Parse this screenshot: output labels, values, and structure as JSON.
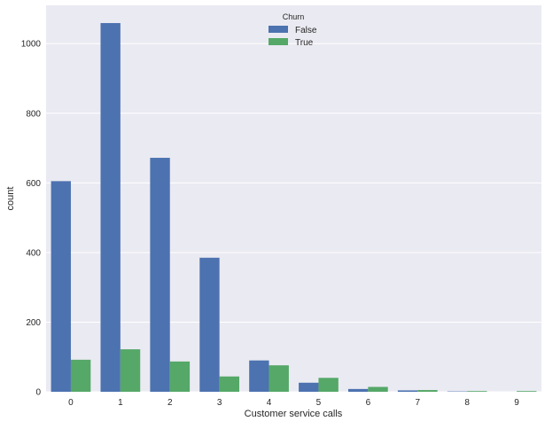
{
  "chart_data": {
    "type": "bar",
    "title": "",
    "xlabel": "Customer service calls",
    "ylabel": "count",
    "categories": [
      "0",
      "1",
      "2",
      "3",
      "4",
      "5",
      "6",
      "7",
      "8",
      "9"
    ],
    "series": [
      {
        "name": "False",
        "color": "#4c72b0",
        "values": [
          605,
          1059,
          672,
          385,
          90,
          26,
          8,
          4,
          1,
          0
        ]
      },
      {
        "name": "True",
        "color": "#55a868",
        "values": [
          92,
          122,
          87,
          44,
          76,
          40,
          14,
          5,
          2,
          2
        ]
      }
    ],
    "ylim": [
      0,
      1110
    ],
    "yticks": [
      0,
      200,
      400,
      600,
      800,
      1000
    ],
    "grid": true,
    "legend": {
      "title": "Churn",
      "placement": "top-center"
    }
  }
}
